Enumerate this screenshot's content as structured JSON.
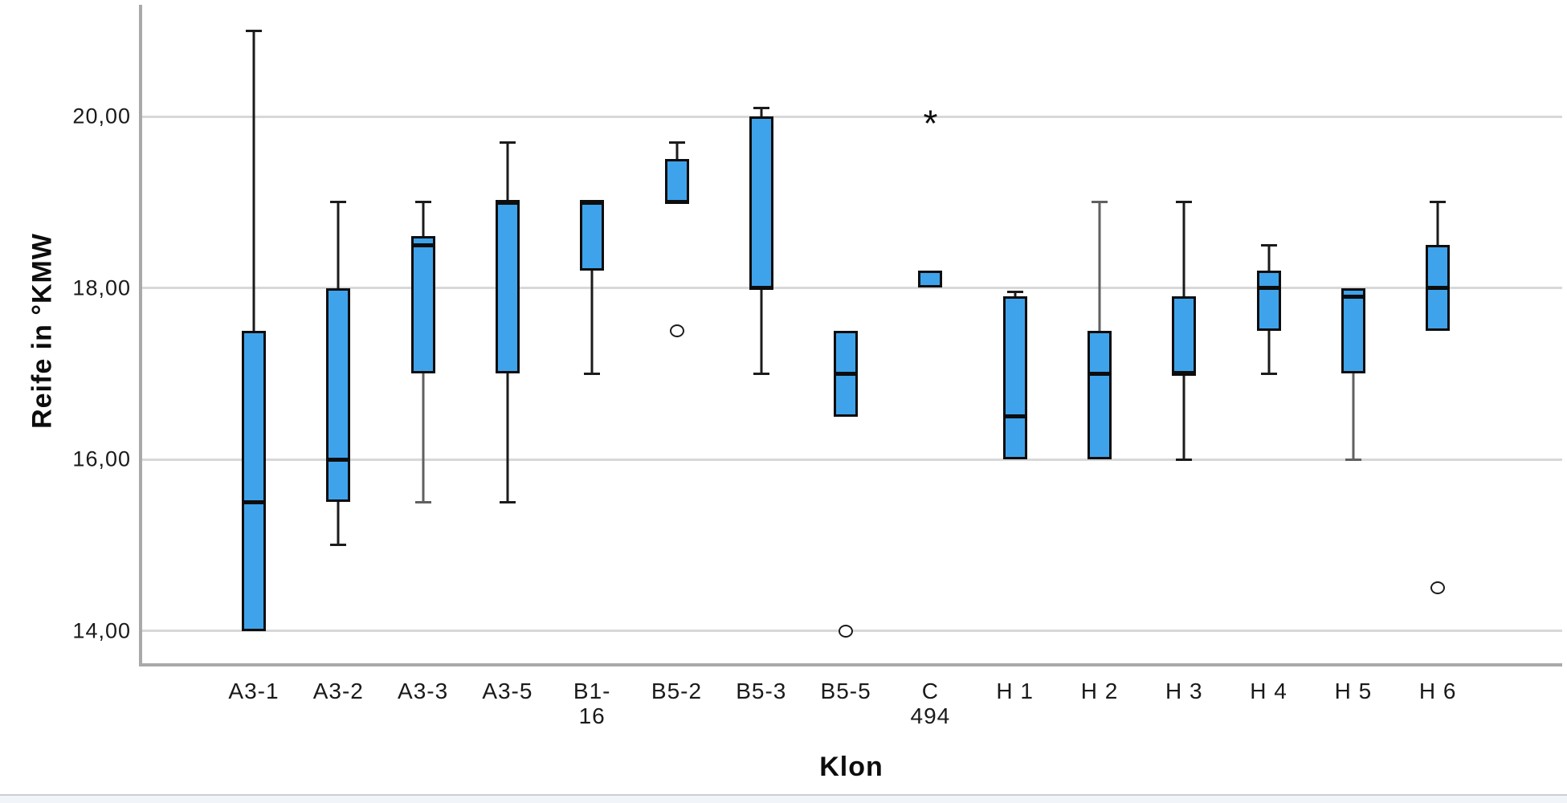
{
  "page": {
    "background": "#ffffff",
    "footer_strip_color": "#f1f4f9",
    "footer_border_color": "#cbced2"
  },
  "chart_data": {
    "type": "boxplot",
    "title": "",
    "xlabel": "Klon",
    "ylabel": "Reife in °KMW",
    "ylim": [
      13.2,
      21.4
    ],
    "grid": "horizontal",
    "legend": null,
    "yticks": [
      {
        "value": 20,
        "label": "20,00"
      },
      {
        "value": 18,
        "label": "18,00"
      },
      {
        "value": 16,
        "label": "16,00"
      },
      {
        "value": 14,
        "label": "14,00"
      }
    ],
    "colors": {
      "box_fill": "#3FA3EB",
      "box_border": "#0d0d0d",
      "median": "#0d0d0d",
      "whisker": "#1b1b1b",
      "whisker_gray": "#606060",
      "gridline": "#d8d8d8",
      "axis": "#a9a9a9"
    },
    "categories": [
      {
        "label_lines": [
          "A3-1"
        ],
        "min": null,
        "q1": 14.0,
        "median": 15.5,
        "q3": 17.5,
        "max": 21.0,
        "outliers": []
      },
      {
        "label_lines": [
          "A3-2"
        ],
        "min": 15.0,
        "q1": 15.5,
        "median": 16.0,
        "q3": 18.0,
        "max": 19.0,
        "outliers": []
      },
      {
        "label_lines": [
          "A3-3"
        ],
        "min": 15.5,
        "q1": 17.0,
        "median": 18.5,
        "q3": 18.6,
        "max": 19.0,
        "lower_whisker_gray": true,
        "outliers": []
      },
      {
        "label_lines": [
          "A3-5"
        ],
        "min": 15.5,
        "q1": 17.0,
        "median": 19.0,
        "q3": 19.0,
        "max": 19.7,
        "outliers": []
      },
      {
        "label_lines": [
          "B1-",
          "16"
        ],
        "min": 17.0,
        "q1": 18.2,
        "median": 19.0,
        "q3": 19.0,
        "max": null,
        "outliers": []
      },
      {
        "label_lines": [
          "B5-2"
        ],
        "min": null,
        "q1": 19.0,
        "median": 19.0,
        "q3": 19.5,
        "max": 19.7,
        "outliers": [
          {
            "value": 17.5,
            "marker": "circle"
          }
        ]
      },
      {
        "label_lines": [
          "B5-3"
        ],
        "min": 17.0,
        "q1": 18.0,
        "median": 18.0,
        "q3": 20.0,
        "max": 20.1,
        "outliers": []
      },
      {
        "label_lines": [
          "B5-5"
        ],
        "min": null,
        "q1": 16.5,
        "median": 17.0,
        "q3": 17.5,
        "max": null,
        "outliers": [
          {
            "value": 14.0,
            "marker": "circle"
          }
        ]
      },
      {
        "label_lines": [
          "C",
          "494"
        ],
        "min": null,
        "q1": 18.0,
        "median": null,
        "q3": 18.2,
        "max": null,
        "outliers": [
          {
            "value": 20.0,
            "marker": "asterisk"
          }
        ]
      },
      {
        "label_lines": [
          "H 1"
        ],
        "min": null,
        "q1": 16.0,
        "median": 16.5,
        "q3": 17.9,
        "max": 17.95,
        "outliers": []
      },
      {
        "label_lines": [
          "H 2"
        ],
        "min": null,
        "q1": 16.0,
        "median": 17.0,
        "q3": 17.5,
        "max": 19.0,
        "upper_whisker_gray": true,
        "outliers": []
      },
      {
        "label_lines": [
          "H 3"
        ],
        "min": 16.0,
        "q1": 17.0,
        "median": 17.0,
        "q3": 17.9,
        "max": 19.0,
        "outliers": []
      },
      {
        "label_lines": [
          "H 4"
        ],
        "min": 17.0,
        "q1": 17.5,
        "median": 18.0,
        "q3": 18.2,
        "max": 18.5,
        "outliers": []
      },
      {
        "label_lines": [
          "H 5"
        ],
        "min": 16.0,
        "q1": 17.0,
        "median": 17.9,
        "q3": 18.0,
        "max": null,
        "lower_whisker_gray": true,
        "outliers": []
      },
      {
        "label_lines": [
          "H 6"
        ],
        "min": null,
        "q1": 17.5,
        "median": 18.0,
        "q3": 18.5,
        "max": 19.0,
        "outliers": [
          {
            "value": 14.5,
            "marker": "circle"
          }
        ]
      }
    ]
  }
}
